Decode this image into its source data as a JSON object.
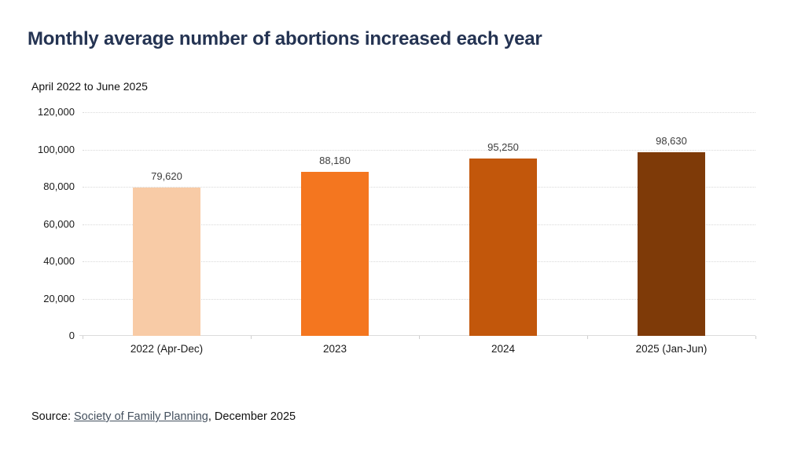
{
  "header": {
    "title": "Monthly average number of abortions increased each year",
    "subtitle": "April 2022 to June 2025"
  },
  "chart_data": {
    "type": "bar",
    "title": "Monthly average number of abortions increased each year",
    "subtitle": "April 2022 to June 2025",
    "categories": [
      "2022 (Apr-Dec)",
      "2023",
      "2024",
      "2025 (Jan-Jun)"
    ],
    "values": [
      79620,
      88180,
      95250,
      98630
    ],
    "value_labels": [
      "79,620",
      "88,180",
      "95,250",
      "98,630"
    ],
    "bar_colors": [
      "#F8CBA6",
      "#F4761F",
      "#C2570B",
      "#7E3A08"
    ],
    "xlabel": "",
    "ylabel": "",
    "ylim": [
      0,
      120000
    ],
    "ytick_step": 20000,
    "ytick_labels": [
      "0",
      "20,000",
      "40,000",
      "60,000",
      "80,000",
      "100,000",
      "120,000"
    ],
    "grid": "horizontal-dotted",
    "legend_position": "none"
  },
  "source": {
    "prefix": "Source: ",
    "link_text": "Society of Family Planning",
    "suffix": ", December 2025"
  },
  "colors": {
    "title_text": "#243352",
    "axis_text": "#1a1a1a",
    "value_label_text": "#3d3d3d",
    "gridline": "#d9d9d9",
    "axis_line": "#dcdcdc",
    "link_text": "#44505e"
  }
}
